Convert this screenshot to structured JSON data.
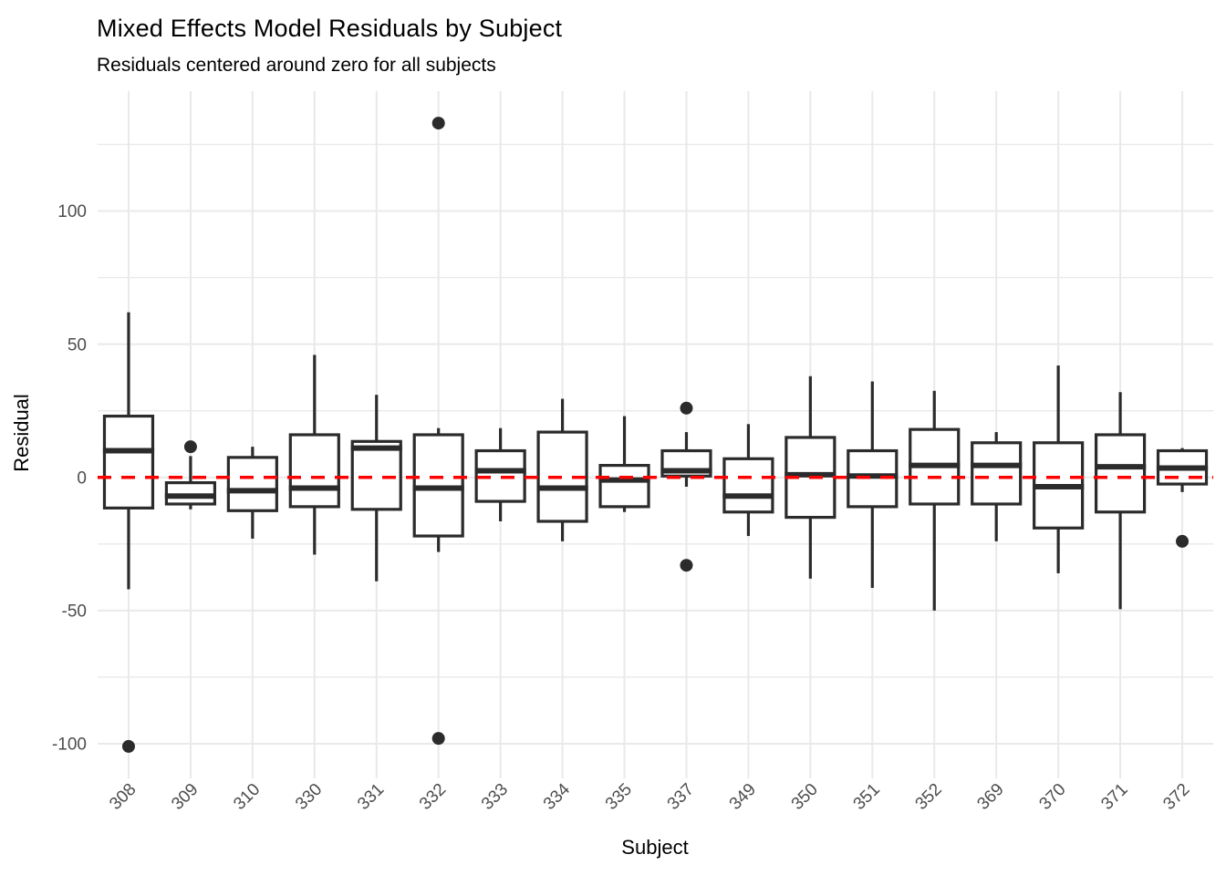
{
  "chart_data": {
    "type": "boxplot",
    "title": "Mixed Effects Model Residuals by Subject",
    "subtitle": "Residuals centered around zero for all subjects",
    "xlabel": "Subject",
    "ylabel": "Residual",
    "categories": [
      "308",
      "309",
      "310",
      "330",
      "331",
      "332",
      "333",
      "334",
      "335",
      "337",
      "349",
      "350",
      "351",
      "352",
      "369",
      "370",
      "371",
      "372"
    ],
    "boxes": [
      {
        "subject": "308",
        "whisker_low": -42,
        "q1": -11.5,
        "median": 10,
        "q3": 23,
        "whisker_high": 62,
        "outliers": [
          -101
        ]
      },
      {
        "subject": "309",
        "whisker_low": -12,
        "q1": -10,
        "median": -7,
        "q3": -2,
        "whisker_high": 8,
        "outliers": [
          11.5
        ]
      },
      {
        "subject": "310",
        "whisker_low": -23,
        "q1": -12.5,
        "median": -5,
        "q3": 7.5,
        "whisker_high": 11.5,
        "outliers": []
      },
      {
        "subject": "330",
        "whisker_low": -29,
        "q1": -11,
        "median": -4,
        "q3": 16,
        "whisker_high": 46,
        "outliers": []
      },
      {
        "subject": "331",
        "whisker_low": -39,
        "q1": -12,
        "median": 11,
        "q3": 13.5,
        "whisker_high": 31,
        "outliers": []
      },
      {
        "subject": "332",
        "whisker_low": -28,
        "q1": -22,
        "median": -4,
        "q3": 16,
        "whisker_high": 18.5,
        "outliers": [
          133,
          -98
        ]
      },
      {
        "subject": "333",
        "whisker_low": -16.5,
        "q1": -9,
        "median": 2.5,
        "q3": 10,
        "whisker_high": 18.5,
        "outliers": []
      },
      {
        "subject": "334",
        "whisker_low": -24,
        "q1": -16.5,
        "median": -4,
        "q3": 17,
        "whisker_high": 29.5,
        "outliers": []
      },
      {
        "subject": "335",
        "whisker_low": -13,
        "q1": -11,
        "median": -1,
        "q3": 4.5,
        "whisker_high": 23,
        "outliers": []
      },
      {
        "subject": "337",
        "whisker_low": -3.5,
        "q1": 0.5,
        "median": 2.5,
        "q3": 10,
        "whisker_high": 17,
        "outliers": [
          26,
          -33
        ]
      },
      {
        "subject": "349",
        "whisker_low": -22,
        "q1": -13,
        "median": -7,
        "q3": 7,
        "whisker_high": 20,
        "outliers": []
      },
      {
        "subject": "350",
        "whisker_low": -38,
        "q1": -15,
        "median": 1,
        "q3": 15,
        "whisker_high": 38,
        "outliers": []
      },
      {
        "subject": "351",
        "whisker_low": -41.5,
        "q1": -11,
        "median": 0.5,
        "q3": 10,
        "whisker_high": 36,
        "outliers": []
      },
      {
        "subject": "352",
        "whisker_low": -50,
        "q1": -10,
        "median": 4.5,
        "q3": 18,
        "whisker_high": 32.5,
        "outliers": []
      },
      {
        "subject": "369",
        "whisker_low": -24,
        "q1": -10,
        "median": 4.5,
        "q3": 13,
        "whisker_high": 17,
        "outliers": []
      },
      {
        "subject": "370",
        "whisker_low": -36,
        "q1": -19,
        "median": -3.5,
        "q3": 13,
        "whisker_high": 42,
        "outliers": []
      },
      {
        "subject": "371",
        "whisker_low": -49.5,
        "q1": -13,
        "median": 4,
        "q3": 16,
        "whisker_high": 32,
        "outliers": []
      },
      {
        "subject": "372",
        "whisker_low": -5.5,
        "q1": -2.5,
        "median": 3.5,
        "q3": 10,
        "whisker_high": 11,
        "outliers": [
          -24
        ]
      }
    ],
    "ylim": [
      -113,
      145
    ],
    "yticks": [
      100,
      50,
      0,
      -50,
      -100
    ],
    "ytick_labels": [
      "100",
      "50",
      "0",
      "-50",
      "-100"
    ],
    "yticks_minor": [
      125,
      75,
      25,
      -25,
      -75
    ],
    "grid": "on",
    "legend": "none",
    "refline": {
      "y": 0,
      "style": "dashed",
      "color": "#FF0000"
    },
    "colors": {
      "box_border": "#2B2B2B",
      "box_fill": "#FFFFFF",
      "median": "#2B2B2B",
      "outlier": "#2B2B2B",
      "gridline": "#E9E9E9",
      "axis_text": "#4D4D4D",
      "title_text": "#000000",
      "background": "#FFFFFF",
      "refline": "#FF0000"
    }
  }
}
